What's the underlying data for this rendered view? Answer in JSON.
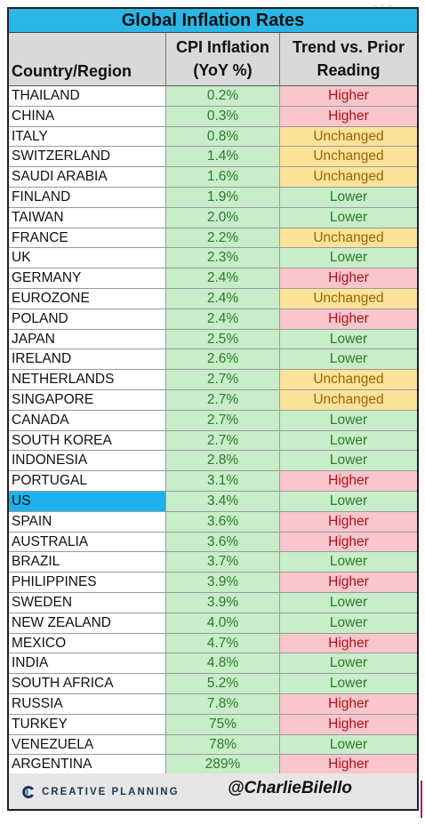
{
  "chart_data": {
    "type": "table",
    "title": "Global Inflation Rates",
    "columns": [
      "Country/Region",
      "CPI Inflation (YoY %)",
      "Trend vs. Prior Reading"
    ],
    "header": {
      "col1": "Country/Region",
      "col2_line1": "CPI Inflation",
      "col2_line2": "(YoY %)",
      "col3_line1": "Trend vs. Prior",
      "col3_line2": "Reading"
    },
    "highlight_color": "#1cb1ec",
    "trend_colors": {
      "Higher": "#f8c6cc",
      "Lower": "#c7eec9",
      "Unchanged": "#fbe39a"
    },
    "rows": [
      {
        "country": "THAILAND",
        "cpi": "0.2%",
        "trend": "Higher"
      },
      {
        "country": "CHINA",
        "cpi": "0.3%",
        "trend": "Higher"
      },
      {
        "country": "ITALY",
        "cpi": "0.8%",
        "trend": "Unchanged"
      },
      {
        "country": "SWITZERLAND",
        "cpi": "1.4%",
        "trend": "Unchanged"
      },
      {
        "country": "SAUDI ARABIA",
        "cpi": "1.6%",
        "trend": "Unchanged"
      },
      {
        "country": "FINLAND",
        "cpi": "1.9%",
        "trend": "Lower"
      },
      {
        "country": "TAIWAN",
        "cpi": "2.0%",
        "trend": "Lower"
      },
      {
        "country": "FRANCE",
        "cpi": "2.2%",
        "trend": "Unchanged"
      },
      {
        "country": "UK",
        "cpi": "2.3%",
        "trend": "Lower"
      },
      {
        "country": "GERMANY",
        "cpi": "2.4%",
        "trend": "Higher"
      },
      {
        "country": "EUROZONE",
        "cpi": "2.4%",
        "trend": "Unchanged"
      },
      {
        "country": "POLAND",
        "cpi": "2.4%",
        "trend": "Higher"
      },
      {
        "country": "JAPAN",
        "cpi": "2.5%",
        "trend": "Lower"
      },
      {
        "country": "IRELAND",
        "cpi": "2.6%",
        "trend": "Lower"
      },
      {
        "country": "NETHERLANDS",
        "cpi": "2.7%",
        "trend": "Unchanged"
      },
      {
        "country": "SINGAPORE",
        "cpi": "2.7%",
        "trend": "Unchanged"
      },
      {
        "country": "CANADA",
        "cpi": "2.7%",
        "trend": "Lower"
      },
      {
        "country": "SOUTH KOREA",
        "cpi": "2.7%",
        "trend": "Lower"
      },
      {
        "country": "INDONESIA",
        "cpi": "2.8%",
        "trend": "Lower"
      },
      {
        "country": "PORTUGAL",
        "cpi": "3.1%",
        "trend": "Higher"
      },
      {
        "country": "US",
        "cpi": "3.4%",
        "trend": "Lower",
        "highlight": true
      },
      {
        "country": "SPAIN",
        "cpi": "3.6%",
        "trend": "Higher"
      },
      {
        "country": "AUSTRALIA",
        "cpi": "3.6%",
        "trend": "Higher"
      },
      {
        "country": "BRAZIL",
        "cpi": "3.7%",
        "trend": "Lower"
      },
      {
        "country": "PHILIPPINES",
        "cpi": "3.9%",
        "trend": "Higher"
      },
      {
        "country": "SWEDEN",
        "cpi": "3.9%",
        "trend": "Lower"
      },
      {
        "country": "NEW ZEALAND",
        "cpi": "4.0%",
        "trend": "Lower"
      },
      {
        "country": "MEXICO",
        "cpi": "4.7%",
        "trend": "Higher"
      },
      {
        "country": "INDIA",
        "cpi": "4.8%",
        "trend": "Lower"
      },
      {
        "country": "SOUTH AFRICA",
        "cpi": "5.2%",
        "trend": "Lower"
      },
      {
        "country": "RUSSIA",
        "cpi": "7.8%",
        "trend": "Higher"
      },
      {
        "country": "TURKEY",
        "cpi": "75%",
        "trend": "Higher"
      },
      {
        "country": "VENEZUELA",
        "cpi": "78%",
        "trend": "Lower"
      },
      {
        "country": "ARGENTINA",
        "cpi": "289%",
        "trend": "Higher"
      }
    ]
  },
  "footer": {
    "brand": "CREATIVE PLANNING",
    "handle": "@CharlieBilello",
    "logo_icon": "creative-planning-logo-icon"
  }
}
